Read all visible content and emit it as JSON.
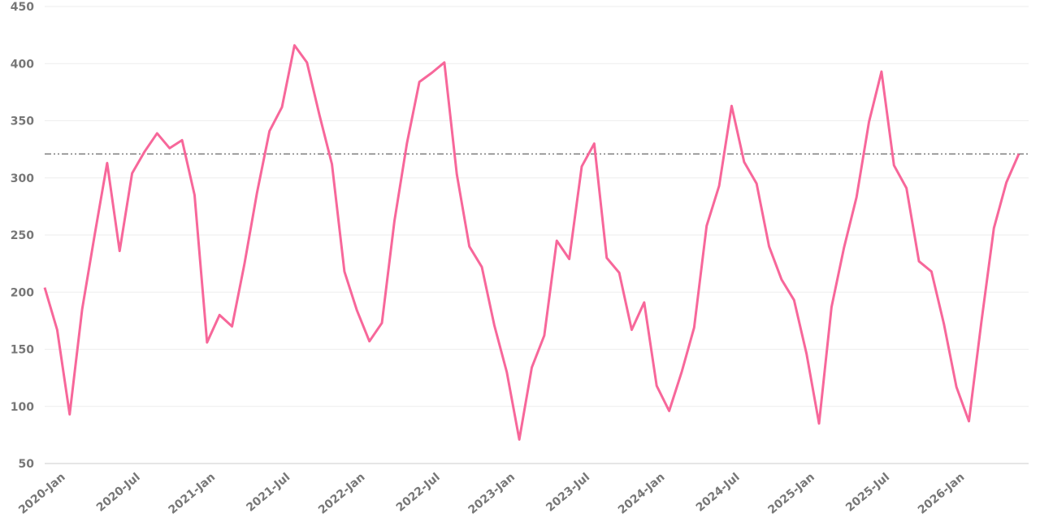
{
  "chart_data": {
    "type": "line",
    "categories": [
      "2020-Jan",
      null,
      null,
      null,
      null,
      null,
      "2020-Jul",
      null,
      null,
      null,
      null,
      null,
      "2021-Jan",
      null,
      null,
      null,
      null,
      null,
      "2021-Jul",
      null,
      null,
      null,
      null,
      null,
      "2022-Jan",
      null,
      null,
      null,
      null,
      null,
      "2022-Jul",
      null,
      null,
      null,
      null,
      null,
      "2023-Jan",
      null,
      null,
      null,
      null,
      null,
      "2023-Jul",
      null,
      null,
      null,
      null,
      null,
      "2024-Jan",
      null,
      null,
      null,
      null,
      null,
      "2024-Jul",
      null,
      null,
      null,
      null,
      null,
      "2025-Jan",
      null,
      null,
      null,
      null,
      null,
      "2025-Jul",
      null,
      null,
      null,
      null,
      null,
      "2026-Jan",
      null,
      null,
      null,
      null,
      null,
      null
    ],
    "series": [
      {
        "color": "#f7679a",
        "values": [
          204,
          167,
          93,
          185,
          250,
          313,
          236,
          304,
          323,
          339,
          326,
          333,
          285,
          156,
          180,
          170,
          225,
          287,
          341,
          362,
          416,
          401,
          355,
          312,
          218,
          184,
          157,
          173,
          262,
          330,
          384,
          392,
          401,
          303,
          240,
          222,
          171,
          130,
          71,
          134,
          162,
          245,
          229,
          310,
          330,
          230,
          217,
          167,
          191,
          118,
          96,
          130,
          169,
          258,
          293,
          363,
          314,
          295,
          240,
          211,
          193,
          146,
          85,
          187,
          239,
          283,
          349,
          393,
          311,
          291,
          227,
          218,
          172,
          117,
          87,
          174,
          256,
          296,
          321
        ]
      }
    ],
    "reference_line": 321,
    "ylim": [
      50,
      450
    ],
    "yticks": [
      50,
      100,
      150,
      200,
      250,
      300,
      350,
      400,
      450
    ],
    "grid": true
  }
}
